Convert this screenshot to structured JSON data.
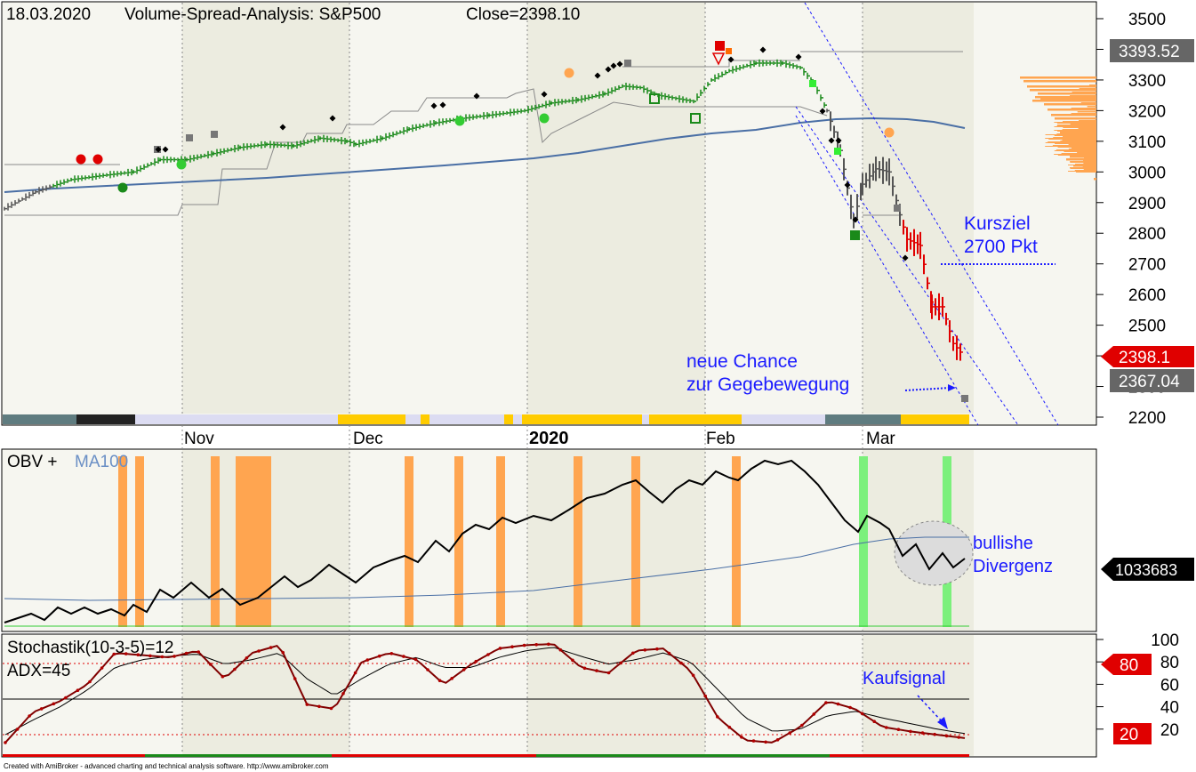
{
  "header": {
    "date": "18.03.2020",
    "title": "Volume-Spread-Analysis: S&P500",
    "close_label": "Close=2398.10"
  },
  "colors": {
    "up_bar": "#1a8a1a",
    "down_bar": "#e00000",
    "neutral_bar": "#555555",
    "ma100": "#4a6fa5",
    "volume_highlight": "#ffa550",
    "stoch": "#800000",
    "annotation": "#1a1aff",
    "buy_signal": "#7cf07c"
  },
  "price_panel": {
    "y_ticks": [
      "2200",
      "2300",
      "2400",
      "2500",
      "2600",
      "2700",
      "2800",
      "2900",
      "3000",
      "3100",
      "3200",
      "3300",
      "3400",
      "3500"
    ],
    "labels": {
      "hi": "3393.52",
      "close": "2398.1",
      "low": "2367.04"
    },
    "annotations": {
      "target_line1": "Kursziel",
      "target_line2": "2700 Pkt",
      "chance_line1": "neue  Chance",
      "chance_line2": "zur Gegebewegung"
    }
  },
  "x_axis": {
    "months": [
      "Nov",
      "Dec",
      "2020",
      "Feb",
      "Mar"
    ]
  },
  "obv_panel": {
    "title_obv": "OBV + ",
    "title_ma": "MA100",
    "value_label": "1033683",
    "annotation_line1": "bullishe",
    "annotation_line2": "Divergenz"
  },
  "stoch_panel": {
    "title": "Stochastik(10-3-5)=12",
    "adx": "ADX=45",
    "y_ticks": [
      "100",
      "80",
      "60",
      "40",
      "20"
    ],
    "label_80": "80",
    "label_20": "20",
    "annotation": "Kaufsignal"
  },
  "footer": {
    "text": "Created with AmiBroker - advanced charting and technical analysis software. http://www.amibroker.com"
  },
  "chart_data": [
    {
      "type": "line",
      "name": "S&P500 daily",
      "x": [
        "2019-10-01",
        "2019-10-08",
        "2019-10-15",
        "2019-10-22",
        "2019-10-29",
        "2019-11-05",
        "2019-11-12",
        "2019-11-19",
        "2019-11-26",
        "2019-12-03",
        "2019-12-10",
        "2019-12-17",
        "2019-12-24",
        "2019-12-31",
        "2020-01-07",
        "2020-01-14",
        "2020-01-21",
        "2020-01-28",
        "2020-02-04",
        "2020-02-11",
        "2020-02-19",
        "2020-02-24",
        "2020-02-27",
        "2020-03-02",
        "2020-03-05",
        "2020-03-09",
        "2020-03-12",
        "2020-03-16",
        "2020-03-18"
      ],
      "series": [
        {
          "name": "Close",
          "values": [
            2940,
            2920,
            2990,
            3000,
            3040,
            3075,
            3090,
            3110,
            3140,
            3095,
            3135,
            3190,
            3220,
            3230,
            3240,
            3285,
            3320,
            3275,
            3300,
            3370,
            3385,
            3225,
            2980,
            3090,
            3020,
            2745,
            2480,
            2385,
            2398
          ]
        },
        {
          "name": "MA100",
          "values": [
            2925,
            2935,
            2945,
            2955,
            2965,
            2975,
            2985,
            2995,
            3005,
            3015,
            3025,
            3035,
            3045,
            3055,
            3065,
            3080,
            3095,
            3105,
            3115,
            3125,
            3135,
            3135,
            3130,
            3130,
            3125,
            3120,
            3120,
            3115,
            3110
          ]
        }
      ],
      "ylim": [
        2160,
        3550
      ]
    },
    {
      "type": "line",
      "name": "OBV",
      "series": [
        {
          "name": "OBV",
          "values": [
            10,
            14,
            11,
            22,
            15,
            30,
            18,
            35,
            27,
            38,
            31,
            45,
            40,
            55,
            60,
            58,
            70,
            82,
            75,
            90,
            94,
            82,
            60,
            58,
            52,
            50,
            46,
            44,
            45
          ]
        },
        {
          "name": "MA100",
          "values": [
            20,
            20,
            21,
            21,
            22,
            22,
            23,
            23,
            24,
            25,
            26,
            27,
            28,
            30,
            32,
            34,
            36,
            38,
            40,
            42,
            44,
            46,
            47,
            48,
            48,
            49,
            49,
            49,
            49
          ]
        }
      ]
    },
    {
      "type": "line",
      "name": "Stochastik(10-3-5)",
      "series": [
        {
          "name": "%K",
          "values": [
            8,
            35,
            45,
            60,
            88,
            86,
            84,
            90,
            65,
            88,
            95,
            42,
            38,
            80,
            88,
            82,
            60,
            78,
            92,
            95,
            96,
            75,
            70,
            90,
            92,
            72,
            30,
            10,
            8,
            22,
            45,
            38,
            22,
            18,
            15,
            12
          ]
        },
        {
          "name": "%D",
          "values": [
            15,
            28,
            40,
            55,
            75,
            82,
            85,
            87,
            78,
            82,
            88,
            65,
            50,
            65,
            78,
            84,
            75,
            75,
            84,
            90,
            93,
            85,
            78,
            82,
            88,
            80,
            55,
            30,
            18,
            20,
            32,
            36,
            30,
            25,
            20,
            16
          ]
        }
      ],
      "ylim": [
        0,
        100
      ],
      "reference_lines": [
        20,
        50,
        80
      ]
    }
  ]
}
